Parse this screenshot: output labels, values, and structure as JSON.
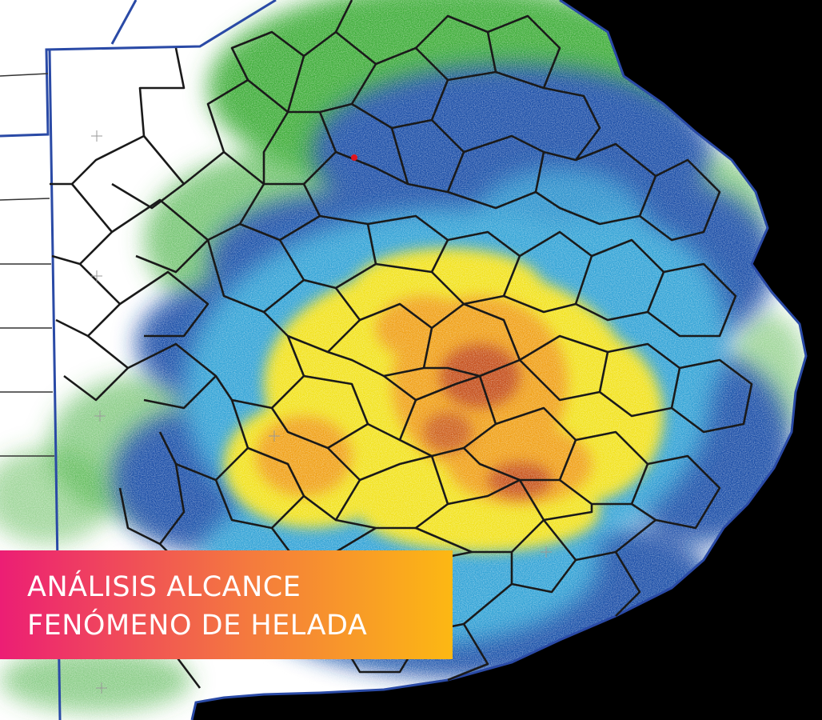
{
  "banner": {
    "line1": "ANÁLISIS ALCANCE",
    "line2": "FENÓMENO DE HELADA",
    "gradient_start": "#ec1e74",
    "gradient_mid": "#f47a3e",
    "gradient_end": "#fcb813",
    "text_color": "#ffffff"
  },
  "map": {
    "intensity_colors": [
      "#ffffff",
      "#3fae3a",
      "#1f4fa8",
      "#31a3d6",
      "#f2e21a",
      "#f0a018",
      "#b5301a"
    ],
    "province_border_color": "#2a4aa6",
    "district_border_color": "#1a1a1a",
    "ocean_color": "#000000",
    "marker_color": "#e0141e"
  }
}
